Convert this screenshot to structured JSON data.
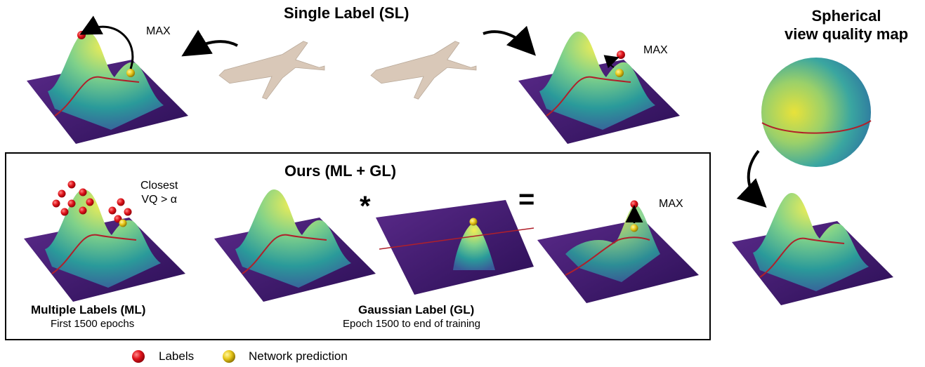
{
  "top": {
    "single_label_title": "Single Label (SL)",
    "max_left": "MAX",
    "max_right": "MAX"
  },
  "sphere_panel": {
    "title_line1": "Spherical",
    "title_line2": "view quality map"
  },
  "ours_box": {
    "title": "Ours (ML + GL)",
    "closest_line1": "Closest",
    "closest_line2": "VQ > α",
    "multiply_symbol": "*",
    "equals_symbol": "=",
    "max_label": "MAX",
    "ml_caption": "Multiple Labels (ML)",
    "ml_subcaption": "First 1500 epochs",
    "gl_caption": "Gaussian Label (GL)",
    "gl_subcaption": "Epoch 1500 to end of training"
  },
  "legend": {
    "labels_text": "Labels",
    "prediction_text": "Network prediction",
    "labels_color": "#e0141b",
    "prediction_color": "#f2d21b"
  },
  "colors": {
    "surface_low": "#3b1368",
    "surface_mid": "#2a9a9a",
    "surface_high": "#e6e84a",
    "equator_line": "#b0202a",
    "airplane": "#d9c8b8"
  }
}
